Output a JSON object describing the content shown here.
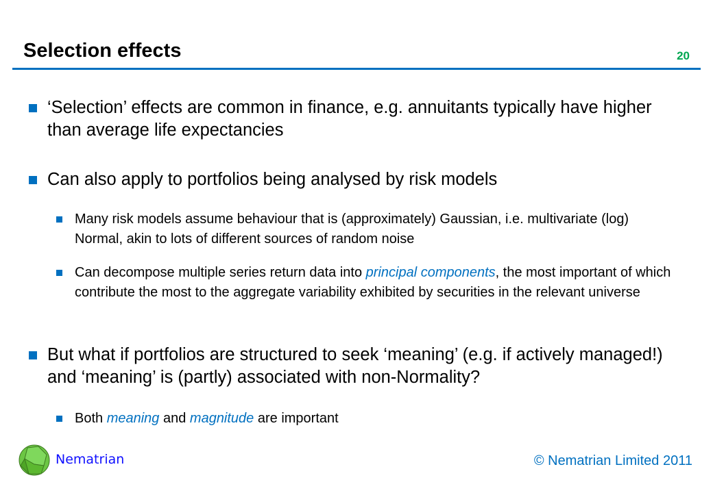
{
  "slide": {
    "title": "Selection effects",
    "page_number": "20"
  },
  "bullets": [
    {
      "text": "‘Selection’ effects are common in finance, e.g. annuitants typically have higher than average life expectancies"
    },
    {
      "text": "Can also apply to portfolios being analysed by risk models"
    },
    {
      "text": "Many risk models assume behaviour that is (approximately) Gaussian, i.e. multivariate (log) Normal, akin to lots of different sources of random noise"
    },
    {
      "pre": "Can decompose multiple series return data into ",
      "em": "principal components",
      "post": ", the most important of which contribute the most to the aggregate variability exhibited by securities in the relevant universe"
    },
    {
      "text": "But what if portfolios are structured to seek ‘meaning’ (e.g. if actively managed!) and ‘meaning’ is (partly) associated with non-Normality?"
    },
    {
      "pre": "Both ",
      "em": "meaning",
      "mid": " and ",
      "em2": "magnitude",
      "post": " are important"
    }
  ],
  "footer": {
    "brand": "Nematrian",
    "copyright": "© Nematrian Limited 2011"
  },
  "colors": {
    "accent": "#0070c0",
    "page_number": "#00a650",
    "brand": "#1010ff"
  }
}
